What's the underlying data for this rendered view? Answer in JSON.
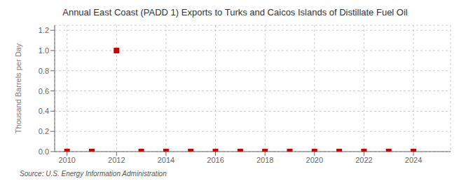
{
  "chart_data": {
    "type": "scatter",
    "title": "Annual East Coast (PADD 1) Exports to Turks and Caicos Islands of Distillate Fuel Oil",
    "y_label": "Thousand Barrels per Day",
    "annotation": "Source: U.S. Energy Information Administration",
    "x": [
      2010,
      2011,
      2012,
      2013,
      2014,
      2015,
      2016,
      2017,
      2018,
      2019,
      2020,
      2021,
      2022,
      2023,
      2024
    ],
    "values": [
      0.0,
      0.0,
      1.0,
      0.0,
      0.0,
      0.0,
      0.0,
      0.0,
      0.0,
      0.0,
      0.0,
      0.0,
      0.0,
      0.0,
      0.0
    ],
    "color": "#cc0000",
    "marker": "square",
    "xlim": [
      2009.5,
      2025.5
    ],
    "ylim": [
      0.0,
      1.25
    ],
    "xticks": [
      2010,
      2012,
      2014,
      2016,
      2018,
      2020,
      2022,
      2024
    ],
    "yticks": [
      {
        "value": 0.0,
        "label": "0.0"
      },
      0.2,
      0.4,
      0.6,
      0.8,
      {
        "value": 1.0,
        "label": "1.0"
      },
      1.2
    ],
    "grid": true
  }
}
